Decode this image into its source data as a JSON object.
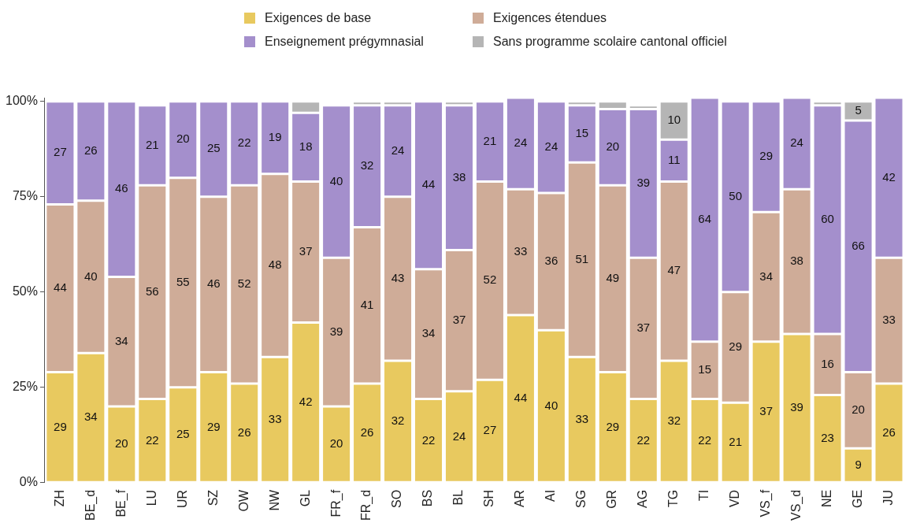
{
  "chart_data": {
    "type": "bar",
    "stacked": true,
    "legend": "top",
    "grid": false,
    "categories": [
      "ZH",
      "BE_d",
      "BE_f",
      "LU",
      "UR",
      "SZ",
      "OW",
      "NW",
      "GL",
      "FR_f",
      "FR_d",
      "SO",
      "BS",
      "BL",
      "SH",
      "AR",
      "AI",
      "SG",
      "GR",
      "AG",
      "TG",
      "TI",
      "VD",
      "VS_f",
      "VS_d",
      "NE",
      "GE",
      "JU"
    ],
    "ylim": [
      0,
      101
    ],
    "yticks": [
      {
        "value": 0,
        "label": "0%"
      },
      {
        "value": 25,
        "label": "25%"
      },
      {
        "value": 50,
        "label": "50%"
      },
      {
        "value": 75,
        "label": "75%"
      },
      {
        "value": 100,
        "label": "100%"
      }
    ],
    "series": [
      {
        "name": "Exigences de base",
        "color": "#e8c95f",
        "values": [
          29,
          34,
          20,
          22,
          25,
          29,
          26,
          33,
          42,
          20,
          26,
          32,
          22,
          24,
          27,
          44,
          40,
          33,
          29,
          22,
          32,
          22,
          21,
          37,
          39,
          23,
          9,
          26
        ],
        "value_labels": [
          "29",
          "34",
          "20",
          "22",
          "25",
          "29",
          "26",
          "33",
          "42",
          "20",
          "26",
          "32",
          "22",
          "24",
          "27",
          "44",
          "40",
          "33",
          "29",
          "22",
          "32",
          "22",
          "21",
          "37",
          "39",
          "23",
          "9",
          "26"
        ]
      },
      {
        "name": "Exigences étendues",
        "color": "#cfac98",
        "values": [
          44,
          40,
          34,
          56,
          55,
          46,
          52,
          48,
          37,
          39,
          41,
          43,
          34,
          37,
          52,
          33,
          36,
          51,
          49,
          37,
          47,
          15,
          29,
          34,
          38,
          16,
          20,
          33
        ],
        "value_labels": [
          "44",
          "40",
          "34",
          "56",
          "55",
          "46",
          "52",
          "48",
          "37",
          "39",
          "41",
          "43",
          "34",
          "37",
          "52",
          "33",
          "36",
          "51",
          "49",
          "37",
          "47",
          "15",
          "29",
          "34",
          "38",
          "16",
          "20",
          "33"
        ]
      },
      {
        "name": "Enseignement prégymnasial",
        "color": "#a48fcc",
        "values": [
          27,
          26,
          46,
          21,
          20,
          25,
          22,
          19,
          18,
          40,
          32,
          24,
          44,
          38,
          21,
          24,
          24,
          15,
          20,
          39,
          11,
          64,
          50,
          29,
          24,
          60,
          66,
          42
        ],
        "value_labels": [
          "27",
          "26",
          "46",
          "21",
          "20",
          "25",
          "22",
          "19",
          "18",
          "40",
          "32",
          "24",
          "44",
          "38",
          "21",
          "24",
          "24",
          "15",
          "20",
          "39",
          "11",
          "64",
          "50",
          "29",
          "24",
          "60",
          "66",
          "42"
        ]
      },
      {
        "name": "Sans programme scolaire cantonal officiel",
        "color": "#b5b5b5",
        "values": [
          null,
          null,
          null,
          null,
          null,
          null,
          null,
          null,
          3,
          null,
          1,
          1,
          null,
          1,
          null,
          null,
          null,
          1,
          2,
          1,
          10,
          null,
          null,
          null,
          null,
          1,
          5,
          null
        ],
        "value_labels": [
          null,
          null,
          null,
          null,
          null,
          null,
          null,
          null,
          null,
          null,
          null,
          null,
          null,
          null,
          null,
          null,
          null,
          null,
          null,
          null,
          "10",
          null,
          null,
          null,
          null,
          null,
          "5",
          null
        ]
      }
    ]
  }
}
